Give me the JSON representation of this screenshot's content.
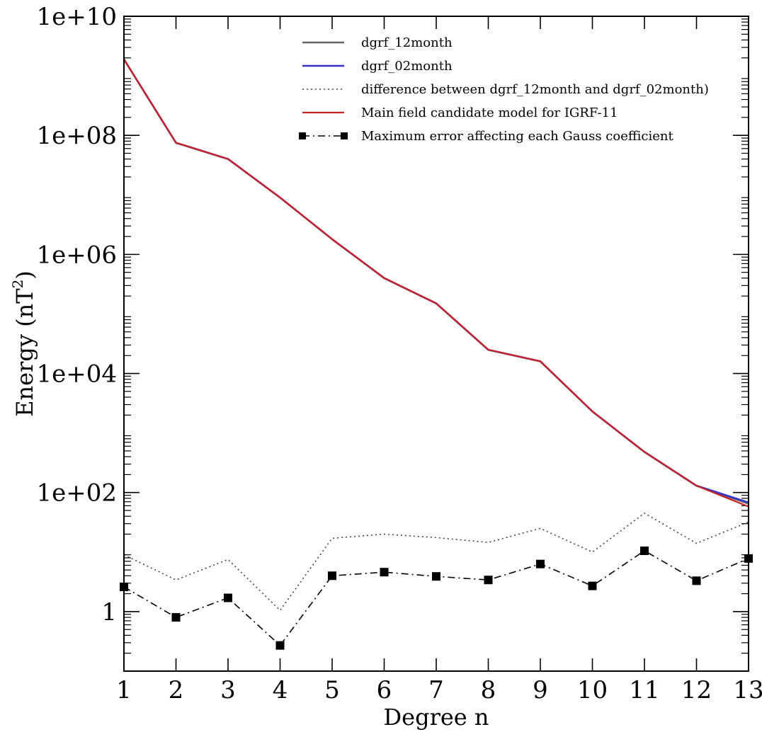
{
  "chart_data": {
    "type": "line",
    "xlabel": "Degree n",
    "ylabel_main": "Energy (nT",
    "ylabel_sup": "2",
    "ylabel_tail": ")",
    "xlim": [
      1,
      13
    ],
    "ylim": [
      0.1,
      10000000000
    ],
    "yscale": "log",
    "x_ticks": [
      1,
      2,
      3,
      4,
      5,
      6,
      7,
      8,
      9,
      10,
      11,
      12,
      13
    ],
    "x_tick_labels": [
      "1",
      "2",
      "3",
      "4",
      "5",
      "6",
      "7",
      "8",
      "9",
      "10",
      "11",
      "12",
      "13"
    ],
    "y_ticks": [
      1,
      100,
      10000,
      1000000,
      100000000,
      10000000000
    ],
    "y_tick_labels": [
      "1",
      "1e+02",
      "1e+04",
      "1e+06",
      "1e+08",
      "1e+10"
    ],
    "legend_position": "top-right",
    "x": [
      1,
      2,
      3,
      4,
      5,
      6,
      7,
      8,
      9,
      10,
      11,
      12,
      13
    ],
    "series": [
      {
        "name": "dgrf_12month",
        "color": "#666666",
        "style": "solid",
        "values": [
          1900000000,
          75000000,
          40000000,
          9000000,
          1800000,
          400000,
          150000,
          25000,
          16000,
          2300,
          480,
          130,
          65
        ]
      },
      {
        "name": "dgrf_02month",
        "color": "#3333cc",
        "style": "solid",
        "values": [
          1900000000,
          75000000,
          40000000,
          9000000,
          1800000,
          400000,
          150000,
          25000,
          16000,
          2300,
          480,
          130,
          68
        ]
      },
      {
        "name": "difference between dgrf_12month and dgrf_02month)",
        "color": "#444444",
        "style": "dotted",
        "values": [
          9,
          3.4,
          7.5,
          1.05,
          17,
          20,
          17.5,
          14.5,
          25,
          10,
          45,
          14,
          32
        ]
      },
      {
        "name": "Main field candidate model for IGRF-11",
        "color": "#cc2222",
        "style": "solid",
        "values": [
          1900000000,
          75000000,
          40000000,
          9000000,
          1800000,
          400000,
          150000,
          25000,
          16000,
          2300,
          480,
          130,
          58
        ]
      },
      {
        "name": "Maximum error affecting each Gauss coefficient",
        "color": "#000000",
        "style": "dashdot-square",
        "values": [
          2.6,
          0.8,
          1.7,
          0.27,
          4.0,
          4.6,
          3.9,
          3.4,
          6.3,
          2.7,
          10.5,
          3.3,
          7.8
        ]
      }
    ]
  }
}
